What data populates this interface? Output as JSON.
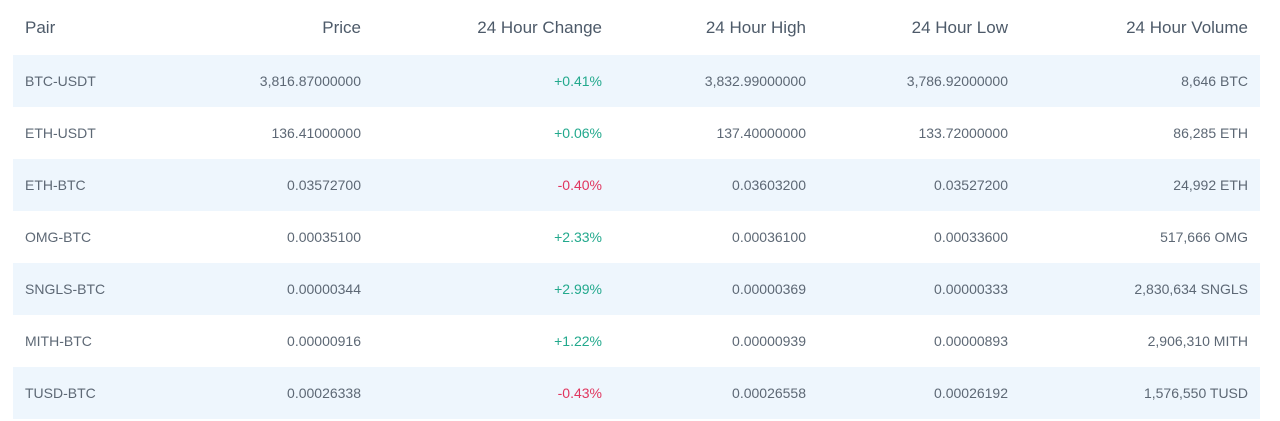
{
  "header": {
    "pair": "Pair",
    "price": "Price",
    "change": "24 Hour Change",
    "high": "24 Hour High",
    "low": "24 Hour Low",
    "volume": "24 Hour Volume"
  },
  "colors": {
    "positive": "#23a98d",
    "negative": "#e0365f",
    "row_stripe": "#eef6fd",
    "text": "#5d6875",
    "header_text": "#4d5a69"
  },
  "rows": [
    {
      "pair": "BTC-USDT",
      "price": "3,816.87000000",
      "change": "+0.41%",
      "direction": "up",
      "high": "3,832.99000000",
      "low": "3,786.92000000",
      "volume": "8,646 BTC"
    },
    {
      "pair": "ETH-USDT",
      "price": "136.41000000",
      "change": "+0.06%",
      "direction": "up",
      "high": "137.40000000",
      "low": "133.72000000",
      "volume": "86,285 ETH"
    },
    {
      "pair": "ETH-BTC",
      "price": "0.03572700",
      "change": "-0.40%",
      "direction": "down",
      "high": "0.03603200",
      "low": "0.03527200",
      "volume": "24,992 ETH"
    },
    {
      "pair": "OMG-BTC",
      "price": "0.00035100",
      "change": "+2.33%",
      "direction": "up",
      "high": "0.00036100",
      "low": "0.00033600",
      "volume": "517,666 OMG"
    },
    {
      "pair": "SNGLS-BTC",
      "price": "0.00000344",
      "change": "+2.99%",
      "direction": "up",
      "high": "0.00000369",
      "low": "0.00000333",
      "volume": "2,830,634 SNGLS"
    },
    {
      "pair": "MITH-BTC",
      "price": "0.00000916",
      "change": "+1.22%",
      "direction": "up",
      "high": "0.00000939",
      "low": "0.00000893",
      "volume": "2,906,310 MITH"
    },
    {
      "pair": "TUSD-BTC",
      "price": "0.00026338",
      "change": "-0.43%",
      "direction": "down",
      "high": "0.00026558",
      "low": "0.00026192",
      "volume": "1,576,550 TUSD"
    }
  ]
}
